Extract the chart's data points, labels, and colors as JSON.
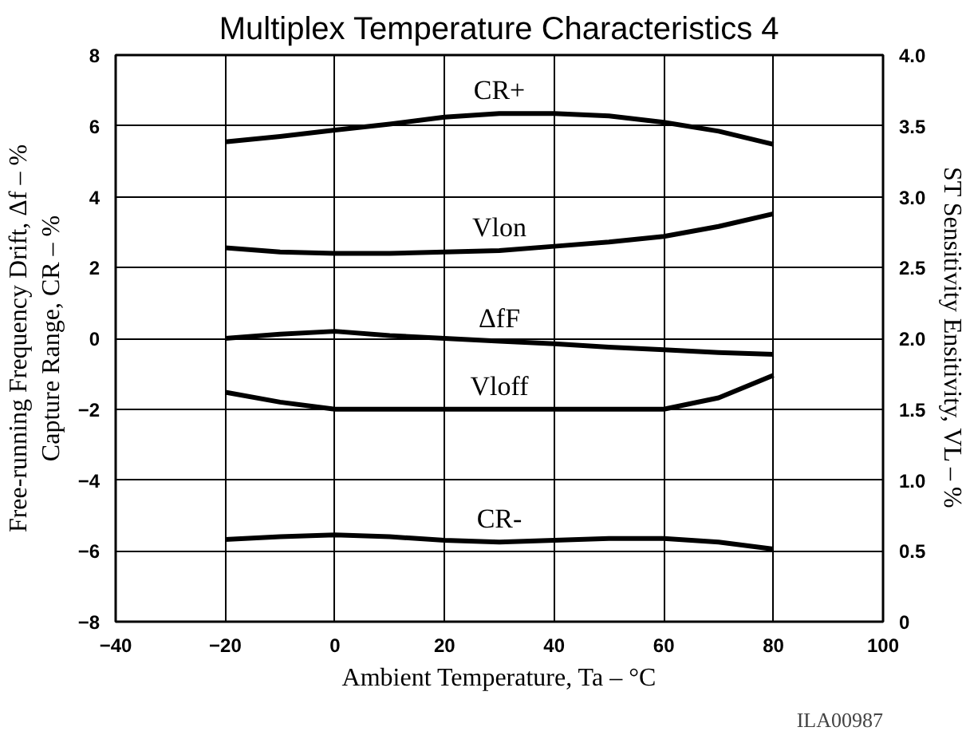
{
  "chart_data": {
    "type": "line",
    "title": "Multiplex Temperature Characteristics 4",
    "xlabel": "Ambient Temperature, Ta – °C",
    "ylabel": "Free-running Frequency Drift, Δf – %\nCapture Range, CR – %",
    "y2label": "ST Sensitivity Ensitivity, VL – %",
    "x": [
      -20,
      -10,
      0,
      10,
      20,
      30,
      40,
      50,
      60,
      70,
      80
    ],
    "xlim": [
      -40,
      100
    ],
    "xticks": [
      -40,
      -20,
      0,
      20,
      40,
      60,
      80,
      100
    ],
    "ylim": [
      -8,
      8
    ],
    "yticks": [
      -8,
      -6,
      -4,
      -2,
      0,
      2,
      4,
      6,
      8
    ],
    "y2lim": [
      0,
      4
    ],
    "y2ticks": [
      0,
      {
        "value": 0.5,
        "label": "0.5"
      },
      {
        "value": 1,
        "label": "1.0"
      },
      {
        "value": 1.5,
        "label": "1.5"
      },
      {
        "value": 2,
        "label": "2.0"
      },
      {
        "value": 2.5,
        "label": "2.5"
      },
      {
        "value": 3,
        "label": "3.0"
      },
      {
        "value": 3.5,
        "label": "3.5"
      },
      {
        "value": 4,
        "label": "4.0"
      }
    ],
    "grid": true,
    "marker": "none",
    "line_style": "solid",
    "series": [
      {
        "name": "CR+",
        "color": "#000000",
        "values": [
          5.55,
          5.7,
          5.88,
          6.05,
          6.25,
          6.35,
          6.35,
          6.28,
          6.1,
          5.85,
          5.48
        ]
      },
      {
        "name": "Vlon",
        "color": "#000000",
        "axis": "y2",
        "values": [
          2.64,
          2.61,
          2.6,
          2.6,
          2.61,
          2.62,
          2.65,
          2.68,
          2.72,
          2.79,
          2.88
        ]
      },
      {
        "name": "ΔfF",
        "color": "#000000",
        "values": [
          0,
          0.12,
          0.2,
          0.08,
          0.0,
          -0.08,
          -0.15,
          -0.25,
          -0.32,
          -0.4,
          -0.45
        ]
      },
      {
        "name": "Vloff",
        "color": "#000000",
        "axis": "y2",
        "values": [
          1.62,
          1.55,
          1.5,
          1.5,
          1.5,
          1.5,
          1.5,
          1.5,
          1.5,
          1.58,
          1.74
        ]
      },
      {
        "name": "CR-",
        "color": "#000000",
        "values": [
          -5.68,
          -5.6,
          -5.55,
          -5.6,
          -5.7,
          -5.75,
          -5.7,
          -5.65,
          -5.65,
          -5.75,
          -5.95
        ]
      }
    ],
    "annotations": [
      "ILA00987"
    ]
  }
}
